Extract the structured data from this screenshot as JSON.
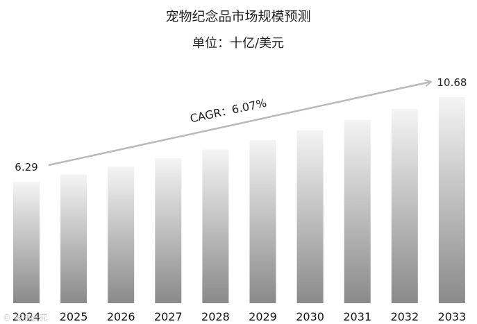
{
  "chart_data": {
    "type": "bar",
    "title": "宠物纪念品市场规模预测",
    "subtitle": "单位：十亿/美元",
    "categories": [
      "2024",
      "2025",
      "2026",
      "2027",
      "2028",
      "2029",
      "2030",
      "2031",
      "2032",
      "2033"
    ],
    "values": [
      6.29,
      6.67,
      7.08,
      7.51,
      7.96,
      8.45,
      8.96,
      9.5,
      10.08,
      10.68
    ],
    "labels": {
      "first": "6.29",
      "last": "10.68"
    },
    "annotation": "CAGR：6.07%",
    "ylim": [
      0,
      12
    ],
    "grid": false,
    "bar_gradient": [
      "#f4f4f4",
      "#8a8a8a"
    ],
    "arrow_color": "#b9b9b9"
  },
  "watermark": "© 赛通研究"
}
